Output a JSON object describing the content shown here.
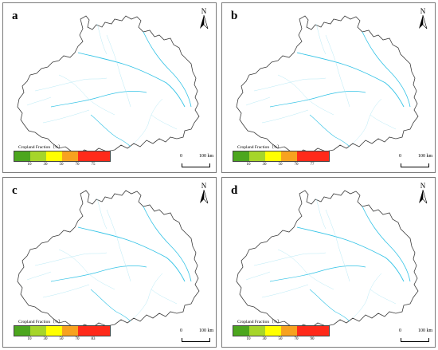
{
  "panels": [
    {
      "letter": "a",
      "ticks": [
        "10",
        "30",
        "50",
        "70",
        "75"
      ]
    },
    {
      "letter": "b",
      "ticks": [
        "10",
        "30",
        "50",
        "70",
        "77"
      ]
    },
    {
      "letter": "c",
      "ticks": [
        "10",
        "30",
        "50",
        "70",
        "83"
      ]
    },
    {
      "letter": "d",
      "ticks": [
        "10",
        "30",
        "50",
        "70",
        "90"
      ]
    }
  ],
  "legend": {
    "title": "Cropland Fraction（%）",
    "colors": [
      "#4ca61e",
      "#a6d52a",
      "#ffff00",
      "#f7a21f",
      "#ff2a1a"
    ]
  },
  "north": {
    "letter": "N"
  },
  "scale": {
    "zero": "0",
    "distance": "100 km"
  },
  "map_colors": {
    "boundary": "#3c3c3c",
    "river": "#33c3e6",
    "stream": "#a6e3f2"
  }
}
